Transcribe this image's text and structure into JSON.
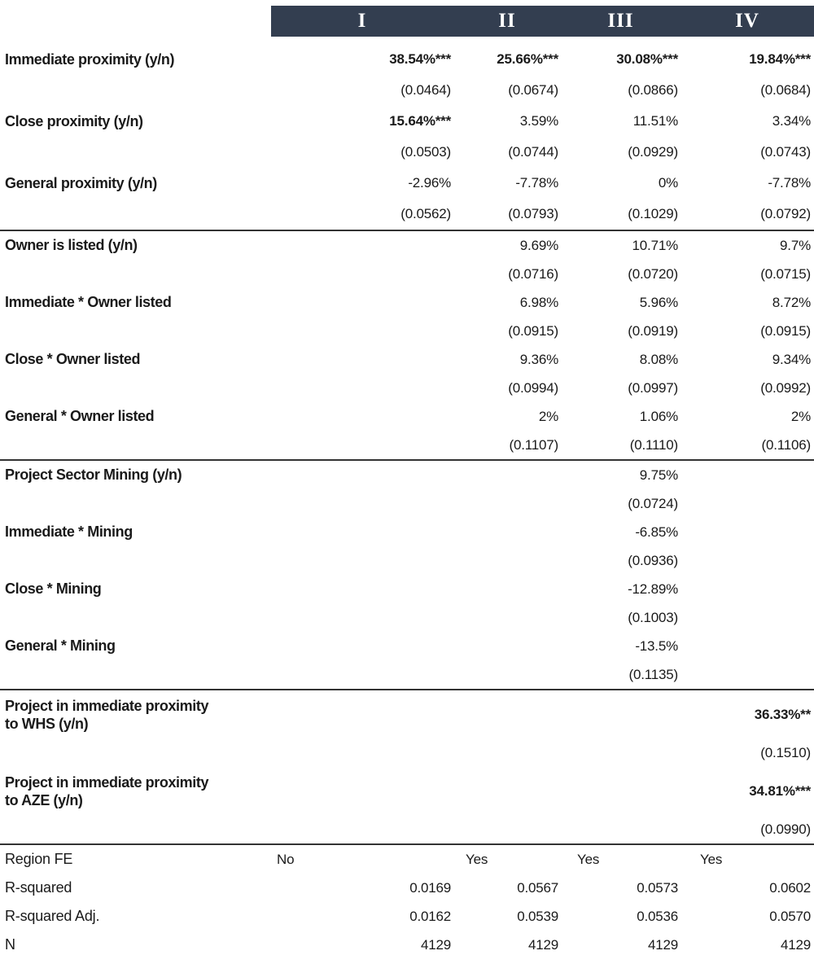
{
  "colors": {
    "header_bg": "#333e50",
    "header_text": "#ffffff",
    "rule": "#333333",
    "text": "#1a1a1a"
  },
  "table": {
    "columns": [
      "I",
      "II",
      "III",
      "IV"
    ],
    "sections": [
      {
        "rows": [
          {
            "label": "Immediate proximity (y/n)",
            "values": [
              "38.54%***",
              "25.66%***",
              "30.08%***",
              "19.84%***"
            ],
            "bold": [
              true,
              true,
              true,
              true
            ],
            "ses": [
              "(0.0464)",
              "(0.0674)",
              "(0.0866)",
              "(0.0684)"
            ]
          },
          {
            "label": "Close proximity (y/n)",
            "values": [
              "15.64%***",
              "3.59%",
              "11.51%",
              "3.34%"
            ],
            "bold": [
              true,
              false,
              false,
              false
            ],
            "ses": [
              "(0.0503)",
              "(0.0744)",
              "(0.0929)",
              "(0.0743)"
            ]
          },
          {
            "label": "General proximity (y/n)",
            "values": [
              "-2.96%",
              "-7.78%",
              "0%",
              "-7.78%"
            ],
            "bold": [
              false,
              false,
              false,
              false
            ],
            "ses": [
              "(0.0562)",
              "(0.0793)",
              "(0.1029)",
              "(0.0792)"
            ]
          }
        ]
      },
      {
        "rows": [
          {
            "label": "Owner is listed (y/n)",
            "values": [
              "",
              "9.69%",
              "10.71%",
              "9.7%"
            ],
            "bold": [
              false,
              false,
              false,
              false
            ],
            "ses": [
              "",
              "(0.0716)",
              "(0.0720)",
              "(0.0715)"
            ]
          },
          {
            "label": "Immediate * Owner listed",
            "values": [
              "",
              "6.98%",
              "5.96%",
              "8.72%"
            ],
            "bold": [
              false,
              false,
              false,
              false
            ],
            "ses": [
              "",
              "(0.0915)",
              "(0.0919)",
              "(0.0915)"
            ]
          },
          {
            "label": "Close * Owner listed",
            "values": [
              "",
              "9.36%",
              "8.08%",
              "9.34%"
            ],
            "bold": [
              false,
              false,
              false,
              false
            ],
            "ses": [
              "",
              "(0.0994)",
              "(0.0997)",
              "(0.0992)"
            ]
          },
          {
            "label": "General * Owner listed",
            "values": [
              "",
              "2%",
              "1.06%",
              "2%"
            ],
            "bold": [
              false,
              false,
              false,
              false
            ],
            "ses": [
              "",
              "(0.1107)",
              "(0.1110)",
              "(0.1106)"
            ]
          }
        ]
      },
      {
        "rows": [
          {
            "label": "Project Sector Mining (y/n)",
            "values": [
              "",
              "",
              "9.75%",
              ""
            ],
            "bold": [
              false,
              false,
              false,
              false
            ],
            "ses": [
              "",
              "",
              "(0.0724)",
              ""
            ]
          },
          {
            "label": "Immediate * Mining",
            "values": [
              "",
              "",
              "-6.85%",
              ""
            ],
            "bold": [
              false,
              false,
              false,
              false
            ],
            "ses": [
              "",
              "",
              "(0.0936)",
              ""
            ]
          },
          {
            "label": "Close * Mining",
            "values": [
              "",
              "",
              "-12.89%",
              ""
            ],
            "bold": [
              false,
              false,
              false,
              false
            ],
            "ses": [
              "",
              "",
              "(0.1003)",
              ""
            ]
          },
          {
            "label": "General * Mining",
            "values": [
              "",
              "",
              "-13.5%",
              ""
            ],
            "bold": [
              false,
              false,
              false,
              false
            ],
            "ses": [
              "",
              "",
              "(0.1135)",
              ""
            ]
          }
        ]
      },
      {
        "rows": [
          {
            "label": "Project in immediate proximity\nto WHS (y/n)",
            "tall": true,
            "values": [
              "",
              "",
              "",
              "36.33%**"
            ],
            "bold": [
              false,
              false,
              false,
              true
            ],
            "ses": [
              "",
              "",
              "",
              "(0.1510)"
            ]
          },
          {
            "label": "Project in immediate proximity\nto AZE (y/n)",
            "tall": true,
            "values": [
              "",
              "",
              "",
              "34.81%***"
            ],
            "bold": [
              false,
              false,
              false,
              true
            ],
            "ses": [
              "",
              "",
              "",
              "(0.0990)"
            ]
          }
        ]
      }
    ],
    "summary": [
      {
        "label": "Region FE",
        "values": [
          "No",
          "Yes",
          "Yes",
          "Yes"
        ],
        "align": "left"
      },
      {
        "label": "R-squared",
        "values": [
          "0.0169",
          "0.0567",
          "0.0573",
          "0.0602"
        ],
        "align": "right"
      },
      {
        "label": "R-squared Adj.",
        "values": [
          "0.0162",
          "0.0539",
          "0.0536",
          "0.0570"
        ],
        "align": "right"
      },
      {
        "label": "N",
        "values": [
          "4129",
          "4129",
          "4129",
          "4129"
        ],
        "align": "right"
      }
    ]
  }
}
